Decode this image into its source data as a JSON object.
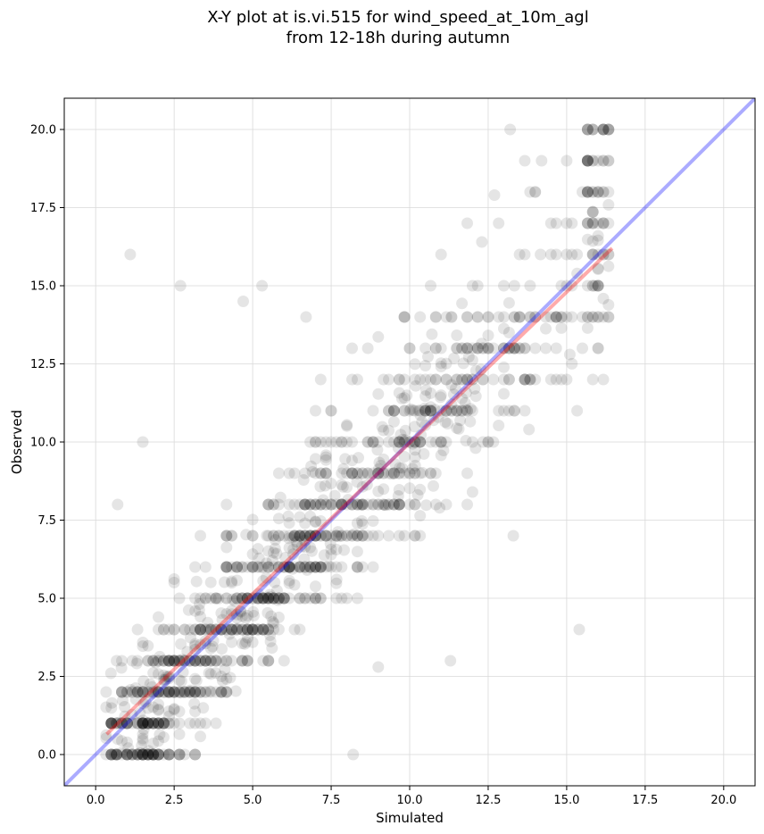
{
  "chart_data": {
    "type": "scatter",
    "title": "X-Y plot at is.vi.515 for wind_speed_at_10m_agl",
    "subtitle": "from 12-18h during autumn",
    "xlabel": "Simulated",
    "ylabel": "Observed",
    "xlim": [
      -1.0,
      21.0
    ],
    "ylim": [
      -1.0,
      21.0
    ],
    "xticks": [
      "0.0",
      "2.5",
      "5.0",
      "7.5",
      "10.0",
      "12.5",
      "15.0",
      "17.5",
      "20.0"
    ],
    "yticks": [
      "0.0",
      "2.5",
      "5.0",
      "7.5",
      "10.0",
      "12.5",
      "15.0",
      "17.5",
      "20.0"
    ],
    "grid": true,
    "colors": {
      "points": "#000000",
      "fit_line": "#ff0000",
      "identity_line": "#0000ff"
    },
    "point_cloud": {
      "x_min": 0.3,
      "x_max": 16.4,
      "y_values_observed": [
        0,
        0.5,
        1,
        1.5,
        2,
        2.5,
        3,
        3.5,
        4,
        4.5,
        5,
        5.5,
        6,
        6.5,
        7,
        7.5,
        8,
        8.5,
        9,
        9.5,
        10,
        10.5,
        11,
        11.5,
        12,
        12.5,
        13,
        13.5,
        14,
        14.5,
        15,
        15.5,
        16,
        16.5,
        17,
        17.5,
        18,
        19,
        20
      ]
    },
    "sample_points": [
      {
        "x": 1.1,
        "y": 16.0
      },
      {
        "x": 2.7,
        "y": 15.0
      },
      {
        "x": 5.3,
        "y": 15.0
      },
      {
        "x": 4.7,
        "y": 14.5
      },
      {
        "x": 6.7,
        "y": 14.0
      },
      {
        "x": 13.2,
        "y": 20.0
      },
      {
        "x": 14.2,
        "y": 19.0
      },
      {
        "x": 14.0,
        "y": 18.0
      },
      {
        "x": 12.7,
        "y": 17.9
      },
      {
        "x": 15.4,
        "y": 4.0
      },
      {
        "x": 11.3,
        "y": 3.0
      },
      {
        "x": 13.3,
        "y": 7.0
      },
      {
        "x": 1.5,
        "y": 10.0
      },
      {
        "x": 0.7,
        "y": 8.0
      },
      {
        "x": 16.0,
        "y": 14.0
      },
      {
        "x": 15.1,
        "y": 12.8
      },
      {
        "x": 8.2,
        "y": 0.0
      },
      {
        "x": 9.0,
        "y": 2.8
      },
      {
        "x": 12.3,
        "y": 16.4
      },
      {
        "x": 14.5,
        "y": 16.0
      },
      {
        "x": 15.0,
        "y": 17.0
      },
      {
        "x": 15.9,
        "y": 15.0
      },
      {
        "x": 13.8,
        "y": 10.4
      },
      {
        "x": 12.0,
        "y": 8.4
      }
    ],
    "fit_line": {
      "x": [
        0.35,
        16.45
      ],
      "y": [
        0.65,
        16.2
      ]
    },
    "identity_line": {
      "x": [
        -1.0,
        21.0
      ],
      "y": [
        -1.0,
        21.0
      ]
    }
  }
}
